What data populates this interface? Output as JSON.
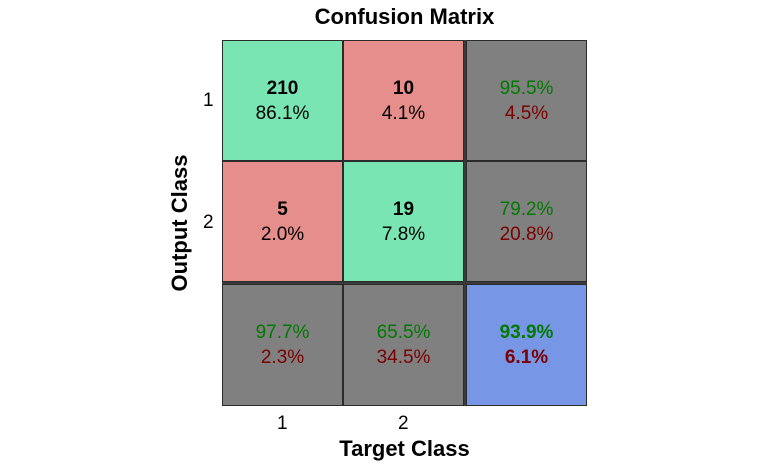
{
  "title": "Confusion Matrix",
  "xlabel": "Target Class",
  "ylabel": "Output Class",
  "x_ticks": [
    "1",
    "2"
  ],
  "y_ticks": [
    "1",
    "2"
  ],
  "colors": {
    "correct": "#79e5b3",
    "incorrect": "#e68e8c",
    "summary": "#808080",
    "overall": "#7896e6",
    "good_text": "#007a00",
    "bad_text": "#7a0000"
  },
  "chart_data": {
    "type": "heatmap",
    "title": "Confusion Matrix",
    "xlabel": "Target Class",
    "ylabel": "Output Class",
    "x_categories": [
      "1",
      "2"
    ],
    "y_categories": [
      "1",
      "2"
    ],
    "matrix": [
      [
        210,
        10
      ],
      [
        5,
        19
      ]
    ],
    "cells": [
      [
        {
          "count": "210",
          "percent": "86.1%"
        },
        {
          "count": "10",
          "percent": "4.1%"
        },
        {
          "correct": "95.5%",
          "incorrect": "4.5%"
        }
      ],
      [
        {
          "count": "5",
          "percent": "2.0%"
        },
        {
          "count": "19",
          "percent": "7.8%"
        },
        {
          "correct": "79.2%",
          "incorrect": "20.8%"
        }
      ],
      [
        {
          "correct": "97.7%",
          "incorrect": "2.3%"
        },
        {
          "correct": "65.5%",
          "incorrect": "34.5%"
        },
        {
          "correct": "93.9%",
          "incorrect": "6.1%"
        }
      ]
    ]
  }
}
